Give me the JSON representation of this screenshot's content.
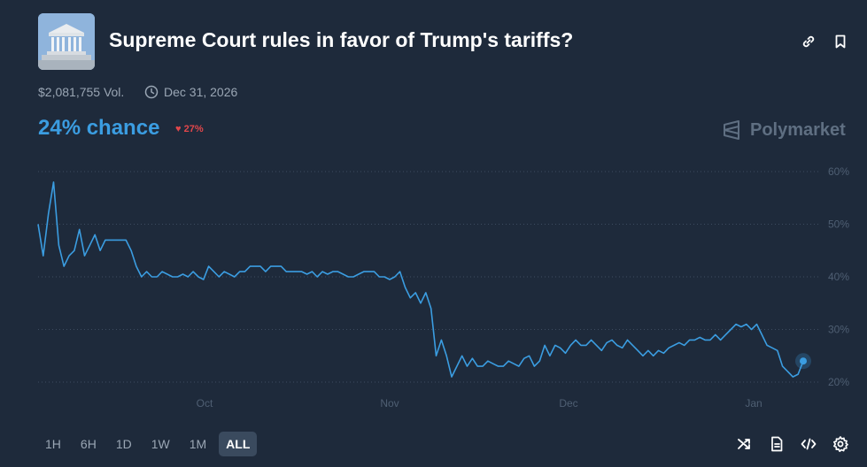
{
  "market": {
    "title": "Supreme Court rules in favor of Trump's tariffs?",
    "volume": "$2,081,755 Vol.",
    "end_date": "Dec 31, 2026",
    "chance_text": "24% chance",
    "change_text": "27%",
    "brand": "Polymarket"
  },
  "header_icons": [
    "link-icon",
    "bookmark-icon"
  ],
  "range_buttons": [
    "1H",
    "6H",
    "1D",
    "1W",
    "1M",
    "ALL"
  ],
  "active_range": "ALL",
  "toolbar_icons": [
    "shuffle-icon",
    "document-icon",
    "code-icon",
    "settings-icon"
  ],
  "colors": {
    "background": "#1e2a3b",
    "accent": "#3b9de1",
    "negative": "#e2474b",
    "muted": "#9aa6b4"
  },
  "chart_data": {
    "type": "line",
    "title": "",
    "xlabel": "",
    "ylabel": "",
    "x_tick_labels": [
      "Oct",
      "Nov",
      "Dec",
      "Jan"
    ],
    "y_tick_labels": [
      "60%",
      "50%",
      "40%",
      "30%",
      "20%"
    ],
    "ylim": [
      18,
      62
    ],
    "grid": "horizontal dotted",
    "series": [
      {
        "values": [
          50,
          44,
          52,
          58,
          46,
          42,
          44,
          45,
          49,
          44,
          46,
          48,
          45,
          47,
          47,
          47,
          47,
          47,
          45,
          42,
          40,
          41,
          40,
          40,
          41,
          40.5,
          40,
          40,
          40.5,
          40,
          41,
          40,
          39.5,
          42,
          41,
          40,
          41,
          40.5,
          40,
          41,
          41,
          42,
          42,
          42,
          41,
          42,
          42,
          42,
          41,
          41,
          41,
          41,
          40.5,
          41,
          40,
          41,
          40.5,
          41,
          41,
          40.5,
          40,
          40,
          40.5,
          41,
          41,
          41,
          40,
          40,
          39.5,
          40,
          41,
          38,
          36,
          37,
          35,
          37,
          34,
          25,
          28,
          25,
          21,
          23,
          25,
          23,
          24.5,
          23,
          23,
          24,
          23.5,
          23,
          23,
          24,
          23.5,
          23,
          24.5,
          25,
          23,
          24,
          27,
          25,
          27,
          26.5,
          25.5,
          27,
          28,
          27,
          27,
          28,
          27,
          26,
          27.5,
          28,
          27,
          26.5,
          28,
          27,
          26,
          25,
          26,
          25,
          26,
          25.5,
          26.5,
          27,
          27.5,
          27,
          28,
          28,
          28.5,
          28,
          28,
          29,
          28,
          29,
          30,
          31,
          30.5,
          31,
          30,
          31,
          29,
          27,
          26.5,
          26,
          23,
          22,
          21,
          21.5,
          24
        ]
      }
    ]
  }
}
